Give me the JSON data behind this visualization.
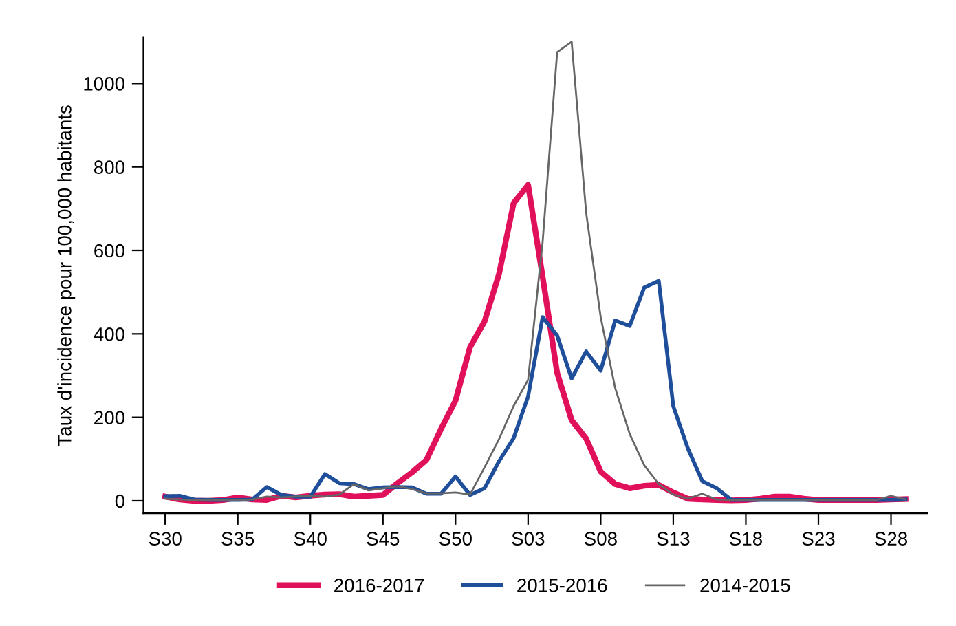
{
  "chart_data": {
    "type": "line",
    "ylabel": "Taux d'incidence pour 100,000 habitants",
    "categories": [
      "S30",
      null,
      null,
      null,
      null,
      "S35",
      null,
      null,
      null,
      null,
      "S40",
      null,
      null,
      null,
      null,
      "S45",
      null,
      null,
      null,
      null,
      "S50",
      null,
      null,
      null,
      null,
      "S03",
      null,
      null,
      null,
      null,
      "S08",
      null,
      null,
      null,
      null,
      "S13",
      null,
      null,
      null,
      null,
      "S18",
      null,
      null,
      null,
      null,
      "S23",
      null,
      null,
      null,
      null,
      "S28",
      null
    ],
    "series": [
      {
        "name": "2016-2017",
        "color": "#e0105a",
        "values": [
          10,
          3,
          0,
          0,
          2,
          8,
          3,
          2,
          12,
          8,
          12,
          15,
          16,
          10,
          12,
          14,
          42,
          68,
          98,
          172,
          240,
          368,
          430,
          544,
          713,
          757,
          537,
          307,
          193,
          149,
          70,
          40,
          30,
          36,
          38,
          20,
          5,
          3,
          2,
          1,
          2,
          5,
          10,
          10,
          5,
          2,
          2,
          2,
          2,
          2,
          3,
          4
        ]
      },
      {
        "name": "2015-2016",
        "color": "#1f4e9a",
        "values": [
          11,
          12,
          3,
          2,
          2,
          2,
          3,
          33,
          14,
          10,
          10,
          64,
          42,
          40,
          28,
          32,
          33,
          32,
          17,
          17,
          58,
          14,
          30,
          95,
          150,
          250,
          440,
          396,
          293,
          358,
          312,
          432,
          419,
          511,
          527,
          227,
          126,
          47,
          30,
          2,
          2,
          2,
          2,
          2,
          2,
          2,
          2,
          2,
          2,
          2,
          2,
          3
        ]
      },
      {
        "name": "2014-2015",
        "color": "#666666",
        "values": [
          5,
          3,
          2,
          2,
          2,
          2,
          3,
          10,
          8,
          10,
          12,
          10,
          15,
          40,
          25,
          30,
          35,
          28,
          18,
          18,
          20,
          15,
          80,
          148,
          227,
          290,
          620,
          1075,
          1100,
          690,
          440,
          270,
          160,
          85,
          40,
          15,
          5,
          17,
          3,
          2,
          2,
          2,
          2,
          2,
          2,
          2,
          2,
          2,
          2,
          2,
          12,
          3
        ]
      }
    ],
    "ylim": [
      -30,
      1110
    ],
    "yticks": [
      0,
      200,
      400,
      600,
      800,
      1000
    ],
    "legend": "bottom",
    "marker": "none",
    "line_style": "solid"
  }
}
